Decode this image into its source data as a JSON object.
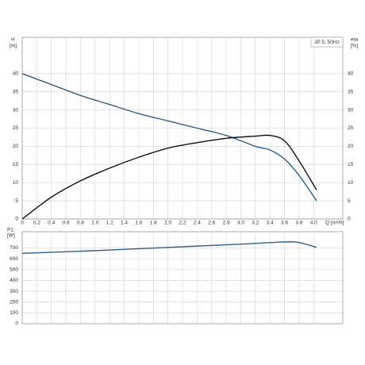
{
  "chart_data": [
    {
      "type": "line",
      "title": "JP 5, 50Hz",
      "y_label": "H",
      "y_unit": "[m]",
      "y2_label": "eta",
      "y2_unit": "[%]",
      "x_label": "Q [m³/h]",
      "xlim": [
        0,
        4.4
      ],
      "xticks": [
        0,
        {
          "value": 0.2,
          "label": "0.2"
        },
        {
          "value": 0.4,
          "label": "0.4"
        },
        {
          "value": 0.6,
          "label": "0.6"
        },
        {
          "value": 0.8,
          "label": "0.8"
        },
        {
          "value": 1.0,
          "label": "1.0"
        },
        {
          "value": 1.2,
          "label": "1.2"
        },
        {
          "value": 1.4,
          "label": "1.4"
        },
        {
          "value": 1.6,
          "label": "1.6"
        },
        {
          "value": 1.8,
          "label": "1.8"
        },
        {
          "value": 2.0,
          "label": "2.0"
        },
        {
          "value": 2.2,
          "label": "2.2"
        },
        {
          "value": 2.4,
          "label": "2.4"
        },
        {
          "value": 2.6,
          "label": "2.6"
        },
        {
          "value": 2.8,
          "label": "2.8"
        },
        {
          "value": 3.0,
          "label": "3.0"
        },
        {
          "value": 3.2,
          "label": "3.2"
        },
        {
          "value": 3.4,
          "label": "3.4"
        },
        {
          "value": 3.6,
          "label": "3.6"
        },
        {
          "value": 3.8,
          "label": "3.8"
        },
        {
          "value": 4.0,
          "label": "4.0"
        }
      ],
      "ylim": [
        0,
        50
      ],
      "yticks": [
        0,
        5,
        10,
        15,
        20,
        25,
        30,
        35,
        40
      ],
      "y2lim": [
        0,
        50
      ],
      "y2ticks": [
        0,
        5,
        10,
        15,
        20,
        25,
        30,
        35,
        40
      ],
      "grid": true,
      "series": [
        {
          "color": "#2e5f8c",
          "x": [
            0,
            0.4,
            0.8,
            1.2,
            1.6,
            2.0,
            2.4,
            2.8,
            3.2,
            3.4,
            3.6,
            3.8,
            4.04
          ],
          "values": [
            40,
            37,
            34,
            31.5,
            29,
            27,
            25,
            23,
            20,
            19,
            16.5,
            12,
            5
          ]
        },
        {
          "color": "#111111",
          "axis": "y2",
          "x": [
            0,
            0.4,
            0.8,
            1.2,
            1.6,
            2.0,
            2.4,
            2.8,
            3.2,
            3.4,
            3.6,
            3.8,
            4.04
          ],
          "values": [
            0,
            6,
            10.5,
            14,
            17,
            19.5,
            21,
            22.2,
            22.8,
            23,
            21.5,
            16,
            8
          ]
        }
      ]
    },
    {
      "type": "line",
      "y_label": "P1",
      "y_unit": "[W]",
      "xlim": [
        0,
        4.4
      ],
      "xticks": [
        0,
        0.2,
        0.4,
        0.6,
        0.8,
        1,
        1.2,
        1.4,
        1.6,
        1.8,
        2,
        2.2,
        2.4,
        2.6,
        2.8,
        3,
        3.2,
        3.4,
        3.6,
        3.8,
        4
      ],
      "ylim": [
        0,
        850
      ],
      "yticks": [
        0,
        100,
        200,
        300,
        400,
        500,
        600,
        700
      ],
      "grid": true,
      "series": [
        {
          "color": "#2e5f8c",
          "x": [
            0,
            1,
            2,
            3,
            3.6,
            3.8,
            4.04
          ],
          "values": [
            650,
            675,
            705,
            735,
            755,
            750,
            705
          ]
        }
      ]
    }
  ]
}
